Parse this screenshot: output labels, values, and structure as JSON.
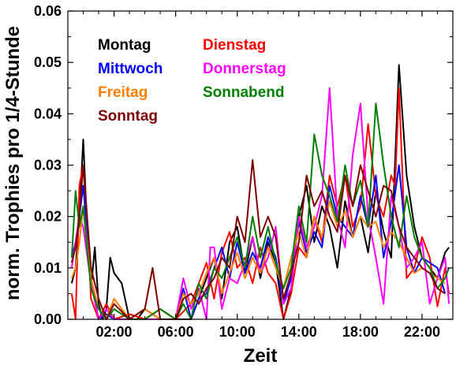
{
  "chart_data": {
    "type": "line",
    "title": "",
    "xlabel": "Zeit",
    "ylabel": "norm. Trophies pro 1/4-Stunde",
    "xlim": [
      -1.0,
      24.0
    ],
    "ylim": [
      0.0,
      0.06
    ],
    "x_ticks": [
      {
        "value": 2,
        "label": "02:00"
      },
      {
        "value": 6,
        "label": "06:00"
      },
      {
        "value": 10,
        "label": "10:00"
      },
      {
        "value": 14,
        "label": "14:00"
      },
      {
        "value": 18,
        "label": "18:00"
      },
      {
        "value": 22,
        "label": "22:00"
      }
    ],
    "y_ticks": [
      {
        "value": 0.0,
        "label": "0.00"
      },
      {
        "value": 0.01,
        "label": "0.01"
      },
      {
        "value": 0.02,
        "label": "0.02"
      },
      {
        "value": 0.03,
        "label": "0.03"
      },
      {
        "value": 0.04,
        "label": "0.04"
      },
      {
        "value": 0.05,
        "label": "0.05"
      },
      {
        "value": 0.06,
        "label": "0.06"
      }
    ],
    "legend_placement": "top-left (inside plot)",
    "grid": false,
    "series": [
      {
        "name": "Montag",
        "color": "#000000",
        "x": [
          -0.75,
          -0.5,
          -0.25,
          0,
          0.25,
          0.5,
          0.75,
          1,
          1.25,
          1.5,
          1.75,
          2,
          2.5,
          3,
          3.5,
          4,
          5,
          6,
          7,
          7.5,
          8,
          8.5,
          9,
          9.5,
          10,
          10.5,
          11,
          11.5,
          12,
          12.5,
          13,
          13.5,
          14,
          14.5,
          15,
          15.5,
          16,
          16.5,
          17,
          17.5,
          18,
          18.5,
          19,
          19.5,
          20,
          20.5,
          21,
          21.5,
          22,
          22.5,
          23,
          23.5,
          23.75
        ],
        "y": [
          0.007,
          0.01,
          0.02,
          0.035,
          0.018,
          0.006,
          0.014,
          0.003,
          0.0,
          0.002,
          0.012,
          0.009,
          0.007,
          0.0,
          0.0,
          0.002,
          0.0,
          0.0,
          0.0,
          0.004,
          0.008,
          0.012,
          0.004,
          0.015,
          0.018,
          0.009,
          0.016,
          0.008,
          0.015,
          0.011,
          0.0,
          0.006,
          0.02,
          0.026,
          0.015,
          0.022,
          0.018,
          0.01,
          0.023,
          0.016,
          0.02,
          0.013,
          0.025,
          0.017,
          0.012,
          0.0495,
          0.028,
          0.018,
          0.012,
          0.01,
          0.008,
          0.013,
          0.014
        ]
      },
      {
        "name": "Dienstag",
        "color": "#ff0000",
        "x": [
          -0.75,
          -0.5,
          -0.25,
          0,
          0.25,
          0.5,
          1,
          1.5,
          2,
          3,
          4,
          5,
          6,
          7,
          8,
          8.5,
          9,
          9.5,
          10,
          10.5,
          11,
          11.5,
          12,
          12.5,
          13,
          13.5,
          14,
          14.5,
          15,
          15.5,
          16,
          16.5,
          17,
          17.5,
          18,
          18.5,
          19,
          19.5,
          20,
          20.25,
          20.5,
          21,
          21.5,
          22,
          22.5,
          23,
          23.5,
          23.75
        ],
        "y": [
          0.005,
          0.0,
          0.026,
          0.03,
          0.02,
          0.004,
          0.0,
          0.003,
          0.0,
          0.001,
          0.0,
          0.002,
          0.0,
          0.003,
          0.011,
          0.004,
          0.013,
          0.017,
          0.01,
          0.012,
          0.007,
          0.014,
          0.009,
          0.007,
          0.0,
          0.005,
          0.014,
          0.012,
          0.02,
          0.015,
          0.028,
          0.022,
          0.028,
          0.018,
          0.022,
          0.038,
          0.024,
          0.02,
          0.028,
          0.026,
          0.045,
          0.008,
          0.01,
          0.016,
          0.012,
          0.0025,
          0.01,
          0.005
        ]
      },
      {
        "name": "Mittwoch",
        "color": "#0000ff",
        "x": [
          -0.75,
          -0.5,
          -0.25,
          0,
          0.5,
          1,
          1.5,
          2,
          3,
          4,
          5,
          6,
          6.5,
          7,
          7.5,
          8,
          8.5,
          9,
          9.5,
          10,
          10.5,
          11,
          11.5,
          12,
          12.5,
          13,
          13.5,
          14,
          14.5,
          15,
          15.5,
          16,
          16.5,
          17,
          17.5,
          18,
          18.5,
          19,
          19.5,
          20,
          20.5,
          21,
          21.5,
          22,
          22.5,
          23,
          23.5
        ],
        "y": [
          0.012,
          0.015,
          0.02,
          0.026,
          0.008,
          0.0,
          0.001,
          0.0,
          0.0,
          0.0,
          0.0,
          0.0,
          0.006,
          0.0,
          0.004,
          0.005,
          0.01,
          0.014,
          0.008,
          0.015,
          0.009,
          0.013,
          0.01,
          0.016,
          0.012,
          0.003,
          0.008,
          0.019,
          0.013,
          0.017,
          0.014,
          0.026,
          0.02,
          0.018,
          0.016,
          0.024,
          0.018,
          0.028,
          0.012,
          0.019,
          0.03,
          0.014,
          0.009,
          0.012,
          0.011,
          0.01,
          0.005
        ]
      },
      {
        "name": "Donnerstag",
        "color": "#ff00ff",
        "x": [
          -0.75,
          -0.5,
          -0.25,
          0,
          0.5,
          1,
          1.5,
          2,
          3,
          4,
          5,
          6,
          6.5,
          7,
          7.5,
          8,
          8.25,
          8.5,
          9,
          9.5,
          10,
          10.5,
          11,
          11.5,
          12,
          12.5,
          13,
          13.5,
          14,
          14.5,
          15,
          15.5,
          16,
          16.5,
          17,
          17.5,
          18,
          18.5,
          19,
          19.5,
          20,
          20.5,
          21,
          21.5,
          22,
          22.5,
          23,
          23.5,
          23.75
        ],
        "y": [
          0.01,
          0.015,
          0.02,
          0.018,
          0.007,
          0.0,
          0.002,
          0.0,
          0.0,
          0.0,
          0.0,
          0.0,
          0.008,
          0.002,
          0.006,
          0.0,
          0.014,
          0.014,
          0.002,
          0.008,
          0.007,
          0.011,
          0.016,
          0.009,
          0.012,
          0.018,
          0.003,
          0.006,
          0.02,
          0.014,
          0.018,
          0.024,
          0.045,
          0.02,
          0.014,
          0.032,
          0.042,
          0.02,
          0.012,
          0.003,
          0.024,
          0.018,
          0.01,
          0.012,
          0.015,
          0.003,
          0.008,
          0.012,
          0.003
        ]
      },
      {
        "name": "Freitag",
        "color": "#ff7f00",
        "x": [
          -0.75,
          -0.5,
          -0.25,
          0,
          0.5,
          1,
          1.5,
          2,
          3,
          4,
          5,
          6,
          6.5,
          7,
          7.5,
          8,
          8.5,
          9,
          9.5,
          10,
          10.5,
          11,
          11.5,
          12,
          12.5,
          13,
          13.5,
          14,
          14.5,
          15,
          15.5,
          16,
          16.5,
          17,
          17.5,
          18,
          18.5,
          19,
          19.5,
          20,
          20.5,
          21,
          21.5,
          22,
          22.5,
          23,
          23.5
        ],
        "y": [
          0.008,
          0.01,
          0.015,
          0.022,
          0.008,
          0.002,
          0.0,
          0.004,
          0.0,
          0.002,
          0.0,
          0.0,
          0.005,
          0.003,
          0.005,
          0.009,
          0.012,
          0.005,
          0.009,
          0.013,
          0.008,
          0.012,
          0.009,
          0.014,
          0.01,
          0.006,
          0.012,
          0.017,
          0.012,
          0.02,
          0.016,
          0.023,
          0.018,
          0.021,
          0.016,
          0.02,
          0.018,
          0.019,
          0.014,
          0.017,
          0.015,
          0.012,
          0.009,
          0.01,
          0.009,
          0.008,
          0.007
        ]
      },
      {
        "name": "Sonnabend",
        "color": "#007f00",
        "x": [
          -0.75,
          -0.5,
          -0.25,
          0,
          0.5,
          1,
          1.5,
          2,
          3,
          4,
          5,
          6,
          6.5,
          7,
          7.5,
          8,
          8.5,
          9,
          9.5,
          10,
          10.5,
          11,
          11.5,
          12,
          12.5,
          13,
          13.5,
          14,
          14.5,
          15,
          15.5,
          16,
          16.5,
          17,
          17.5,
          18,
          18.5,
          19,
          19.5,
          20,
          20.5,
          21,
          21.5,
          22,
          22.5,
          23,
          23.5,
          23.75
        ],
        "y": [
          0.012,
          0.025,
          0.018,
          0.022,
          0.006,
          0.002,
          0.0,
          0.002,
          0.0,
          0.0,
          0.002,
          0.0,
          0.003,
          0.0,
          0.007,
          0.004,
          0.01,
          0.008,
          0.012,
          0.016,
          0.01,
          0.02,
          0.012,
          0.018,
          0.011,
          0.006,
          0.01,
          0.022,
          0.015,
          0.036,
          0.028,
          0.024,
          0.019,
          0.03,
          0.022,
          0.027,
          0.018,
          0.042,
          0.03,
          0.02,
          0.014,
          0.024,
          0.016,
          0.012,
          0.01,
          0.006,
          0.008,
          0.01
        ]
      },
      {
        "name": "Sonntag",
        "color": "#7f0000",
        "x": [
          -0.75,
          -0.5,
          -0.25,
          0,
          0.5,
          1,
          1.5,
          2,
          3,
          4,
          4.5,
          5,
          6,
          6.5,
          7,
          7.5,
          8,
          8.5,
          9,
          9.5,
          10,
          10.5,
          11,
          11.5,
          12,
          12.5,
          13,
          13.5,
          14,
          14.5,
          15,
          15.5,
          16,
          16.5,
          17,
          17.5,
          18,
          18.5,
          19,
          19.5,
          20,
          20.5,
          21,
          21.5,
          22,
          22.5,
          23,
          23.5
        ],
        "y": [
          0.011,
          0.014,
          0.02,
          0.03,
          0.01,
          0.004,
          0.0,
          0.003,
          0.0,
          0.002,
          0.01,
          0.0,
          0.0,
          0.004,
          0.005,
          0.003,
          0.006,
          0.008,
          0.012,
          0.01,
          0.02,
          0.015,
          0.031,
          0.016,
          0.02,
          0.016,
          0.004,
          0.009,
          0.015,
          0.028,
          0.022,
          0.025,
          0.02,
          0.017,
          0.028,
          0.022,
          0.03,
          0.025,
          0.02,
          0.026,
          0.025,
          0.018,
          0.014,
          0.012,
          0.01,
          0.009,
          0.006,
          0.005
        ]
      }
    ]
  }
}
